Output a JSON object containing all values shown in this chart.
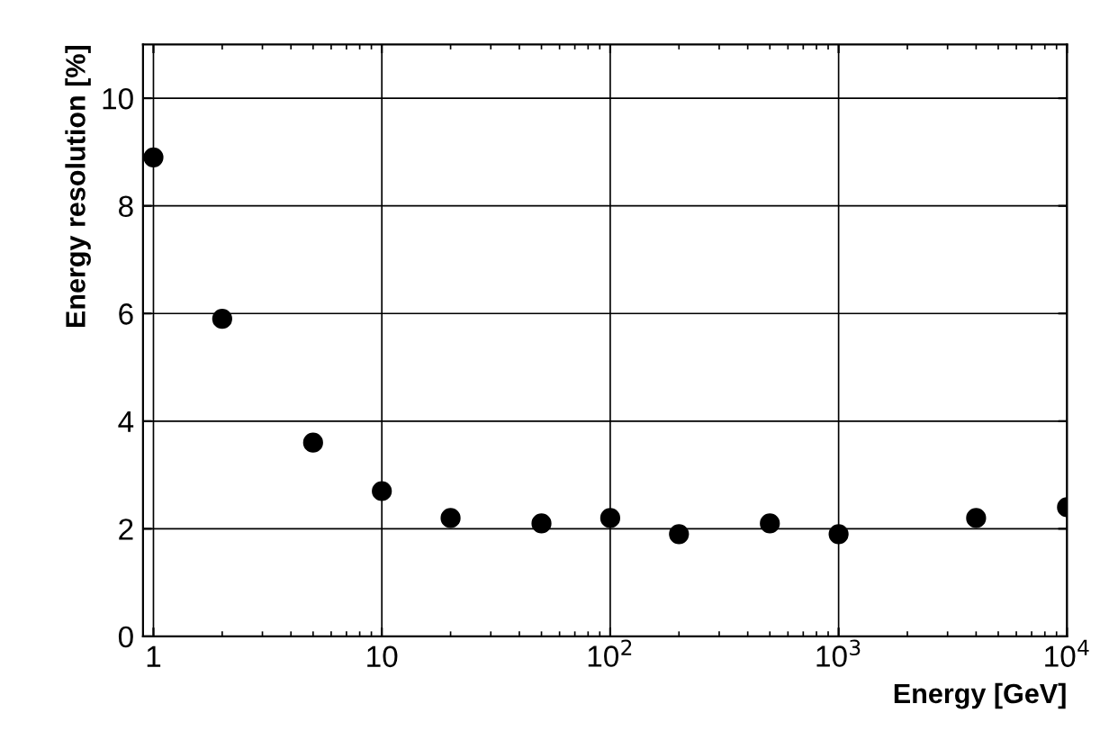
{
  "chart_data": {
    "type": "scatter",
    "xlabel": "Energy [GeV]",
    "ylabel": "Energy resolution [%]",
    "x": [
      1,
      2,
      5,
      10,
      20,
      50,
      100,
      200,
      500,
      1000,
      4000,
      10000
    ],
    "values": [
      8.9,
      5.9,
      3.6,
      2.7,
      2.2,
      2.1,
      2.2,
      1.9,
      2.1,
      1.9,
      2.2,
      2.4
    ],
    "color": "#000000",
    "marker": "circle",
    "log": "x",
    "grid": true,
    "xlim": [
      0.9,
      10000
    ],
    "xticks": [
      1,
      10,
      {
        "value": 100,
        "label": "10$^{2}$"
      },
      {
        "value": 1000,
        "label": "10$^{3}$"
      },
      {
        "value": 10000,
        "label": "10$^{4}$"
      }
    ],
    "ylim": [
      0,
      11
    ],
    "yticks": [
      0,
      2,
      4,
      6,
      8,
      10
    ]
  }
}
